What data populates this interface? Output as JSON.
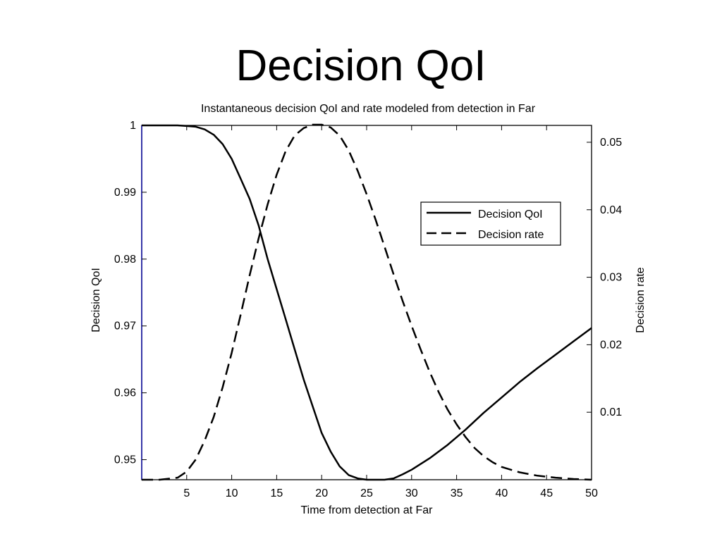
{
  "slide": {
    "title": "Decision QoI"
  },
  "chart_data": {
    "type": "line",
    "title": "Instantaneous decision QoI and rate modeled from detection in Far",
    "xlabel": "Time from detection at Far",
    "ylabel_left": "Decision QoI",
    "ylabel_right": "Decision rate",
    "xlim": [
      0,
      50
    ],
    "ylim_left": [
      0.947,
      1.0
    ],
    "ylim_right": [
      0.0,
      0.0525
    ],
    "x_ticks": [
      5,
      10,
      15,
      20,
      25,
      30,
      35,
      40,
      45,
      50
    ],
    "y_left_ticks": [
      0.95,
      0.96,
      0.97,
      0.98,
      0.99,
      1
    ],
    "y_right_ticks": [
      0.01,
      0.02,
      0.03,
      0.04,
      0.05
    ],
    "grid": false,
    "legend_position": "upper-right",
    "series": [
      {
        "name": "Decision QoI",
        "axis": "left",
        "style": "solid",
        "x": [
          0,
          2,
          4,
          5,
          6,
          7,
          8,
          9,
          10,
          11,
          12,
          13,
          14,
          15,
          16,
          17,
          18,
          19,
          20,
          21,
          22,
          23,
          24,
          25,
          26,
          27,
          28,
          29,
          30,
          32,
          34,
          36,
          38,
          40,
          42,
          44,
          46,
          48,
          50
        ],
        "values": [
          1.0,
          1.0,
          1.0,
          0.9999,
          0.9998,
          0.9994,
          0.9986,
          0.9972,
          0.995,
          0.992,
          0.989,
          0.985,
          0.98,
          0.9755,
          0.971,
          0.9665,
          0.962,
          0.958,
          0.954,
          0.9512,
          0.949,
          0.9477,
          0.9472,
          0.947,
          0.947,
          0.947,
          0.9472,
          0.9478,
          0.9485,
          0.9502,
          0.9522,
          0.9545,
          0.957,
          0.9593,
          0.9616,
          0.9637,
          0.9657,
          0.9677,
          0.9697
        ]
      },
      {
        "name": "Decision rate",
        "axis": "right",
        "style": "dashed",
        "x": [
          0,
          2,
          4,
          5,
          6,
          7,
          8,
          9,
          10,
          11,
          12,
          13,
          14,
          15,
          16,
          17,
          18,
          19,
          20,
          21,
          22,
          23,
          24,
          25,
          26,
          27,
          28,
          29,
          30,
          31,
          32,
          33,
          34,
          35,
          36,
          37,
          38,
          39,
          40,
          42,
          44,
          46,
          48,
          50
        ],
        "values": [
          0.0,
          0.0,
          0.0003,
          0.0012,
          0.003,
          0.0058,
          0.0093,
          0.0137,
          0.0188,
          0.0245,
          0.0303,
          0.0358,
          0.0408,
          0.0452,
          0.0487,
          0.051,
          0.0521,
          0.0526,
          0.0526,
          0.0522,
          0.051,
          0.0488,
          0.0458,
          0.0423,
          0.0385,
          0.0345,
          0.0304,
          0.0265,
          0.0228,
          0.0193,
          0.016,
          0.013,
          0.0104,
          0.0082,
          0.0063,
          0.0047,
          0.0035,
          0.0026,
          0.0019,
          0.0011,
          0.0006,
          0.0003,
          0.0001,
          0.0
        ]
      }
    ]
  }
}
